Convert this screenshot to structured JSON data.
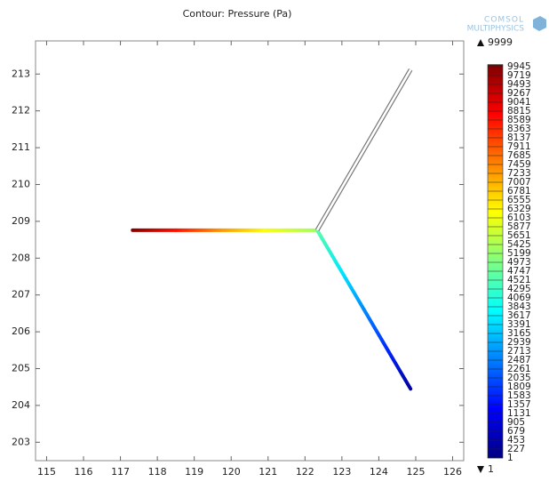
{
  "chart_data": {
    "type": "contour",
    "title": "Contour: Pressure (Pa)",
    "logo": [
      "COMSOL",
      "MULTIPHYSICS"
    ],
    "xlim": [
      114.7,
      126.3
    ],
    "xticks": [
      115,
      116,
      117,
      118,
      119,
      120,
      121,
      122,
      123,
      124,
      125,
      126
    ],
    "ylim": [
      202.5,
      213.9
    ],
    "yticks": [
      203,
      204,
      205,
      206,
      207,
      208,
      209,
      210,
      211,
      212,
      213
    ],
    "colormap": [
      "#000080",
      "#0000ff",
      "#0080ff",
      "#00ffff",
      "#80ff80",
      "#ffff00",
      "#ff8000",
      "#ff0000",
      "#800000"
    ],
    "pipes": [
      {
        "x": [
          117.33,
          118.5,
          119.7,
          120.9,
          122.33
        ],
        "y": [
          208.76,
          208.76,
          208.76,
          208.76,
          208.76
        ],
        "pressure": [
          9900,
          8600,
          7300,
          6200,
          5300
        ]
      },
      {
        "x": [
          122.33,
          123.0,
          123.6,
          124.25,
          124.86
        ],
        "y": [
          208.76,
          207.62,
          206.6,
          205.49,
          204.45
        ],
        "pressure": [
          4600,
          3500,
          2600,
          1600,
          300
        ]
      },
      {
        "x": [
          122.33,
          124.86
        ],
        "y": [
          208.76,
          213.12
        ]
      }
    ],
    "colorbar": {
      "max": 9999,
      "min": 1,
      "levels": [
        1,
        227,
        453,
        679,
        905,
        1131,
        1357,
        1583,
        1809,
        2035,
        2261,
        2487,
        2713,
        2939,
        3165,
        3391,
        3617,
        3843,
        4069,
        4295,
        4521,
        4747,
        4973,
        5199,
        5425,
        5651,
        5877,
        6103,
        6329,
        6555,
        6781,
        7007,
        7233,
        7459,
        7685,
        7911,
        8137,
        8363,
        8589,
        8815,
        9041,
        9267,
        9493,
        9719,
        9945
      ]
    }
  }
}
